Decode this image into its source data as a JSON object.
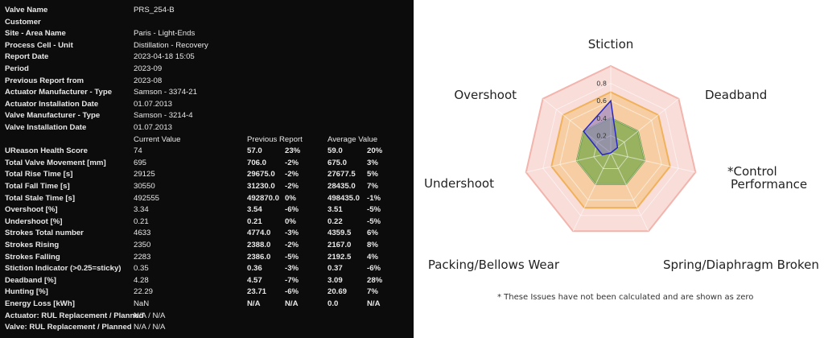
{
  "info": [
    {
      "label": "Valve Name",
      "value": "PRS_254-B"
    },
    {
      "label": "Customer",
      "value": ""
    },
    {
      "label": "Site - Area Name",
      "value": "Paris - Light-Ends"
    },
    {
      "label": "Process Cell - Unit",
      "value": "Distillation - Recovery"
    },
    {
      "label": "Report Date",
      "value": "2023-04-18 15:05"
    },
    {
      "label": "Period",
      "value": "2023-09"
    },
    {
      "label": "Previous Report from",
      "value": "2023-08"
    },
    {
      "label": "Actuator Manufacturer - Type",
      "value": "Samson - 3374-21"
    },
    {
      "label": "Actuator Installation Date",
      "value": "01.07.2013"
    },
    {
      "label": "Valve Manufacturer - Type",
      "value": "Samson - 3214-4"
    },
    {
      "label": "Valve Installation Date",
      "value": "01.07.2013"
    }
  ],
  "metrics_header": {
    "current": "Current Value",
    "previous": "Previous Report",
    "average": "Average Value"
  },
  "metrics": [
    {
      "label": "UReason Health Score",
      "current": "74",
      "prev": "57.0",
      "prev_pct": "23%",
      "avg": "59.0",
      "avg_pct": "20%"
    },
    {
      "label": "Total Valve Movement [mm]",
      "current": "695",
      "prev": "706.0",
      "prev_pct": "-2%",
      "avg": "675.0",
      "avg_pct": "3%"
    },
    {
      "label": "Total Rise Time [s]",
      "current": "29125",
      "prev": "29675.0",
      "prev_pct": "-2%",
      "avg": "27677.5",
      "avg_pct": "5%"
    },
    {
      "label": "Total Fall Time [s]",
      "current": "30550",
      "prev": "31230.0",
      "prev_pct": "-2%",
      "avg": "28435.0",
      "avg_pct": "7%"
    },
    {
      "label": "Total Stale Time [s]",
      "current": "492555",
      "prev": "492870.0",
      "prev_pct": "0%",
      "avg": "498435.0",
      "avg_pct": "-1%"
    },
    {
      "label": "Overshoot [%]",
      "current": "3.34",
      "prev": "3.54",
      "prev_pct": "-6%",
      "avg": "3.51",
      "avg_pct": "-5%"
    },
    {
      "label": "Undershoot [%]",
      "current": "0.21",
      "prev": "0.21",
      "prev_pct": "0%",
      "avg": "0.22",
      "avg_pct": "-5%"
    },
    {
      "label": "Strokes Total number",
      "current": "4633",
      "prev": "4774.0",
      "prev_pct": "-3%",
      "avg": "4359.5",
      "avg_pct": "6%"
    },
    {
      "label": "Strokes Rising",
      "current": "2350",
      "prev": "2388.0",
      "prev_pct": "-2%",
      "avg": "2167.0",
      "avg_pct": "8%"
    },
    {
      "label": "Strokes Falling",
      "current": "2283",
      "prev": "2386.0",
      "prev_pct": "-5%",
      "avg": "2192.5",
      "avg_pct": "4%"
    },
    {
      "label": "Stiction Indicator (>0.25=sticky)",
      "current": "0.35",
      "prev": "0.36",
      "prev_pct": "-3%",
      "avg": "0.37",
      "avg_pct": "-6%"
    },
    {
      "label": "Deadband [%]",
      "current": "4.28",
      "prev": "4.57",
      "prev_pct": "-7%",
      "avg": "3.09",
      "avg_pct": "28%"
    },
    {
      "label": "Hunting [%]",
      "current": "22.29",
      "prev": "23.71",
      "prev_pct": "-6%",
      "avg": "20.69",
      "avg_pct": "7%"
    },
    {
      "label": "Energy Loss [kWh]",
      "current": "NaN",
      "prev": "N/A",
      "prev_pct": "N/A",
      "avg": "0.0",
      "avg_pct": "N/A"
    },
    {
      "label": "Actuator: RUL Replacement / Planned",
      "current": "N/A / N/A",
      "prev": "",
      "prev_pct": "",
      "avg": "",
      "avg_pct": ""
    },
    {
      "label": "Valve: RUL Replacement / Planned",
      "current": "N/A / N/A",
      "prev": "",
      "prev_pct": "",
      "avg": "",
      "avg_pct": ""
    }
  ],
  "chart_data": {
    "type": "radar",
    "axes": [
      "Stiction",
      "Deadband",
      "*Control Performance",
      "Spring/Diaphragm Broken",
      "Packing/Bellows Wear",
      "Undershoot",
      "Overshoot"
    ],
    "rmax": 1.0,
    "tick_values": [
      0.2,
      0.4,
      0.6,
      0.8
    ],
    "tick_labels": [
      "0.2",
      "0.4",
      "0.6",
      "0.8"
    ],
    "zones": [
      {
        "value": 1.0,
        "color": "#f6d1cc",
        "stroke": "#f2b4ac"
      },
      {
        "value": 0.7,
        "color": "#f7c890",
        "stroke": "#f1b15a"
      },
      {
        "value": 0.4,
        "color": "#7aa84a",
        "stroke": "#5f8e30"
      }
    ],
    "series": [
      {
        "values": [
          0.6,
          0.1,
          0.0,
          0.0,
          0.0,
          0.1,
          0.4
        ],
        "fill": "#8f7fd0",
        "stroke": "#2727c8"
      }
    ],
    "grid": true,
    "footnote": "* These Issues have not been calculated and are shown as zero"
  }
}
